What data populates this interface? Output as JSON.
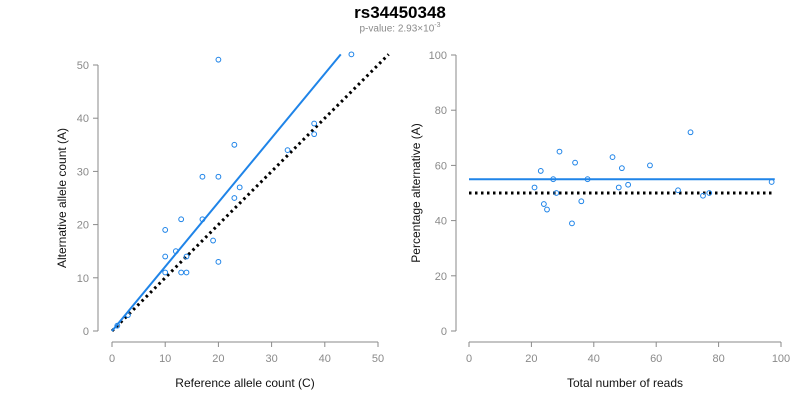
{
  "title": "rs34450348",
  "subtitle": {
    "prefix": "p-value: 2.93×10",
    "exponent": "-3"
  },
  "colors": {
    "fit_line": "#1f84e8",
    "points": "#1f84e8",
    "reference_line": "#000000",
    "axes": "#8a8a8a"
  },
  "chart_data": [
    {
      "type": "scatter",
      "title": "",
      "xlabel": "Reference allele count (C)",
      "ylabel": "Alternative allele count (A)",
      "xlim": [
        0,
        50
      ],
      "ylim": [
        0,
        50
      ],
      "xticks": [
        0,
        10,
        20,
        30,
        40,
        50
      ],
      "yticks": [
        0,
        10,
        20,
        30,
        40,
        50
      ],
      "points": [
        [
          1,
          1
        ],
        [
          3,
          3
        ],
        [
          10,
          11
        ],
        [
          10,
          14
        ],
        [
          10,
          19
        ],
        [
          12,
          15
        ],
        [
          13,
          11
        ],
        [
          13,
          21
        ],
        [
          14,
          11
        ],
        [
          14,
          14
        ],
        [
          17,
          21
        ],
        [
          17,
          29
        ],
        [
          19,
          17
        ],
        [
          20,
          13
        ],
        [
          20,
          29
        ],
        [
          20,
          51
        ],
        [
          23,
          25
        ],
        [
          23,
          35
        ],
        [
          24,
          27
        ],
        [
          33,
          34
        ],
        [
          38,
          37
        ],
        [
          38,
          39
        ],
        [
          45,
          52
        ]
      ],
      "fit_line": {
        "x": [
          0,
          43
        ],
        "y": [
          0,
          52
        ]
      },
      "reference_line": {
        "x": [
          0,
          52
        ],
        "y": [
          0,
          52
        ]
      },
      "grid": false
    },
    {
      "type": "scatter",
      "title": "",
      "xlabel": "Total number of reads",
      "ylabel": "Percentage alternative (A)",
      "xlim": [
        0,
        100
      ],
      "ylim": [
        0,
        100
      ],
      "xticks": [
        0,
        20,
        40,
        60,
        80,
        100
      ],
      "yticks": [
        0,
        20,
        40,
        60,
        80,
        100
      ],
      "points": [
        [
          21,
          52
        ],
        [
          23,
          58
        ],
        [
          24,
          46
        ],
        [
          25,
          44
        ],
        [
          27,
          55
        ],
        [
          28,
          50
        ],
        [
          29,
          65
        ],
        [
          33,
          39
        ],
        [
          34,
          61
        ],
        [
          36,
          47
        ],
        [
          38,
          55
        ],
        [
          46,
          63
        ],
        [
          48,
          52
        ],
        [
          49,
          59
        ],
        [
          51,
          53
        ],
        [
          58,
          60
        ],
        [
          67,
          51
        ],
        [
          71,
          72
        ],
        [
          75,
          49
        ],
        [
          77,
          50
        ],
        [
          97,
          54
        ]
      ],
      "fit_line": {
        "x": [
          0,
          98
        ],
        "y": [
          55,
          55
        ]
      },
      "reference_line": {
        "x": [
          0,
          98
        ],
        "y": [
          50,
          50
        ]
      },
      "grid": false
    }
  ]
}
